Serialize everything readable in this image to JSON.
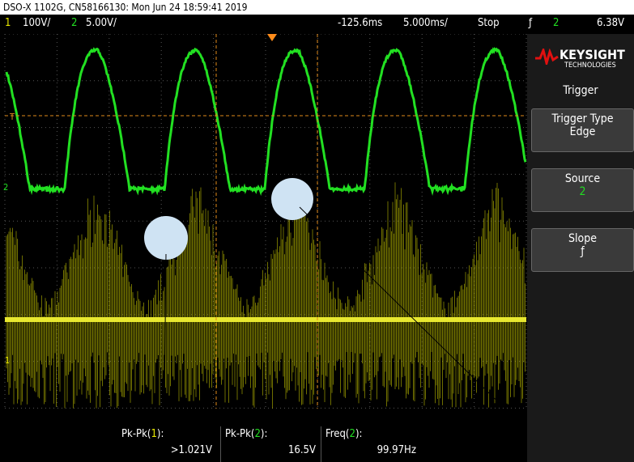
{
  "header": {
    "title": "DSO-X 1102G, CN58166130: Mon Jun 24 18:59:41 2019"
  },
  "status": {
    "ch1_num": "1",
    "ch1_scale": "100V/",
    "ch2_num": "2",
    "ch2_scale": "5.00V/",
    "delay": "-125.6ms",
    "timebase": "5.000ms/",
    "run_state": "Stop",
    "trigger_edge": "ƒ",
    "trigger_source": "2",
    "trigger_level": "6.38V"
  },
  "markers": {
    "trigger": "T",
    "ch2": "2",
    "ch1": "1"
  },
  "panel": {
    "brand": "KEYSIGHT",
    "brand_sub": "TECHNOLOGIES",
    "title": "Trigger",
    "buttons": [
      {
        "label": "Trigger Type",
        "value": "Edge"
      },
      {
        "label": "Source",
        "value": "2"
      },
      {
        "label": "Slope",
        "value": "ƒ"
      }
    ]
  },
  "measurements": [
    {
      "label_pre": "Pk-Pk(",
      "channel": "1",
      "label_post": "):",
      "value": ">1.021V"
    },
    {
      "label_pre": "Pk-Pk(",
      "channel": "2",
      "label_post": "):",
      "value": "16.5V"
    },
    {
      "label_pre": "Freq(",
      "channel": "2",
      "label_post": "):",
      "value": "99.97Hz"
    }
  ]
}
